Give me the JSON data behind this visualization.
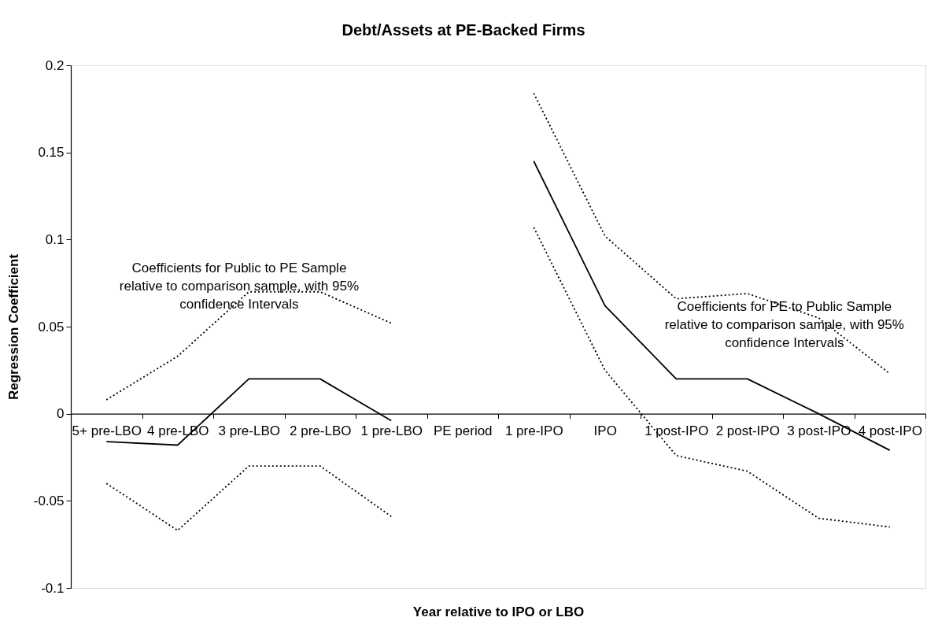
{
  "chart_data": {
    "type": "line",
    "title": "Debt/Assets at PE-Backed Firms",
    "xlabel": "Year relative to IPO or LBO",
    "ylabel": "Regression Coefficient",
    "categories": [
      "5+ pre-LBO",
      "4 pre-LBO",
      "3 pre-LBO",
      "2 pre-LBO",
      "1 pre-LBO",
      "PE period",
      "1 pre-IPO",
      "IPO",
      "1 post-IPO",
      "2 post-IPO",
      "3 post-IPO",
      "4 post-IPO"
    ],
    "series": [
      {
        "color": "#000000",
        "line_style": "solid",
        "values": [
          -0.016,
          -0.018,
          0.02,
          0.02,
          -0.004,
          null,
          0.145,
          0.062,
          0.02,
          0.02,
          0,
          -0.021
        ]
      },
      {
        "color": "#000000",
        "line_style": "dotted",
        "values": [
          0.008,
          0.033,
          0.07,
          0.07,
          0.052,
          null,
          0.184,
          0.102,
          0.066,
          0.069,
          0.055,
          0.023
        ]
      },
      {
        "color": "#000000",
        "line_style": "dotted",
        "values": [
          -0.04,
          -0.067,
          -0.03,
          -0.03,
          -0.059,
          null,
          0.107,
          0.025,
          -0.024,
          -0.033,
          -0.06,
          -0.065
        ]
      }
    ],
    "ylim": [
      -0.1,
      0.2
    ],
    "yticks": [
      -0.1,
      -0.05,
      0,
      0.05,
      0.1,
      0.15,
      0.2
    ],
    "annotations": [
      "Coefficients for Public to PE Sample\nrelative to comparison sample, with 95%\nconfidence Intervals",
      "Coefficients for PE to Public Sample\nrelative to comparison sample, with 95%\nconfidence Intervals"
    ]
  }
}
